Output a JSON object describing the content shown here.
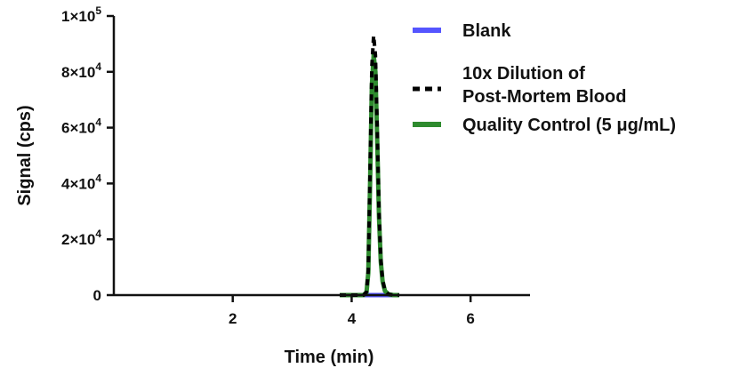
{
  "chart_data": {
    "type": "line",
    "title": "",
    "xlabel": "Time (min)",
    "ylabel": "Signal (cps)",
    "xlim": [
      0,
      7.0
    ],
    "ylim": [
      0,
      100000
    ],
    "x_ticks": [
      {
        "value": 2,
        "label": "2"
      },
      {
        "value": 4,
        "label": "4"
      },
      {
        "value": 6,
        "label": "6"
      }
    ],
    "y_ticks": [
      {
        "value": 0,
        "base": "0",
        "exp": ""
      },
      {
        "value": 20000,
        "base": "2×10",
        "exp": "4"
      },
      {
        "value": 40000,
        "base": "4×10",
        "exp": "4"
      },
      {
        "value": 60000,
        "base": "6×10",
        "exp": "4"
      },
      {
        "value": 80000,
        "base": "8×10",
        "exp": "4"
      },
      {
        "value": 100000,
        "base": "1×10",
        "exp": "5"
      }
    ],
    "legend_position": "top-right",
    "series": [
      {
        "name": "Blank",
        "color": "#5555ff",
        "style": "solid-thick",
        "x": [
          3.8,
          4.2,
          4.4,
          4.6,
          4.8
        ],
        "y": [
          0,
          0,
          0,
          0,
          0
        ]
      },
      {
        "name": "Quality Control (5 μg/mL)",
        "color": "#2e8b2e",
        "style": "solid-thick",
        "x": [
          3.8,
          4.0,
          4.2,
          4.25,
          4.28,
          4.31,
          4.34,
          4.37,
          4.4,
          4.43,
          4.46,
          4.49,
          4.52,
          4.56,
          4.62,
          4.7,
          4.8
        ],
        "y": [
          0,
          0,
          0,
          1000,
          8000,
          40000,
          75000,
          86000,
          80000,
          55000,
          28000,
          12000,
          5000,
          1500,
          300,
          0,
          0
        ]
      },
      {
        "name": "10x Dilution of Post-Mortem Blood",
        "color": "#000000",
        "style": "dashed",
        "x": [
          3.8,
          4.0,
          4.2,
          4.25,
          4.28,
          4.31,
          4.34,
          4.37,
          4.4,
          4.43,
          4.46,
          4.49,
          4.52,
          4.56,
          4.62,
          4.7,
          4.8
        ],
        "y": [
          0,
          0,
          0,
          1100,
          9000,
          45000,
          82000,
          93000,
          86000,
          60000,
          30000,
          13000,
          5500,
          1600,
          300,
          0,
          0
        ]
      }
    ],
    "legend": [
      {
        "lines": [
          "Blank"
        ],
        "color": "#5555ff",
        "style": "solid-thick"
      },
      {
        "lines": [
          "10x Dilution of",
          "Post-Mortem Blood"
        ],
        "color": "#000000",
        "style": "dashed"
      },
      {
        "lines": [
          "Quality Control (5 μg/mL)"
        ],
        "color": "#2e8b2e",
        "style": "solid-thick"
      }
    ]
  }
}
